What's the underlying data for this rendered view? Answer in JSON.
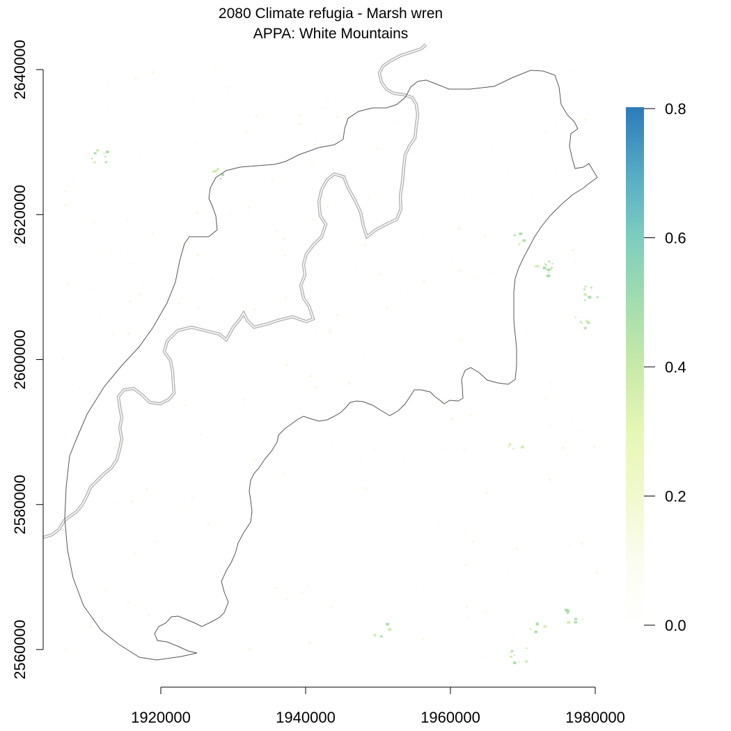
{
  "title": {
    "line1": "2080 Climate refugia - Marsh wren",
    "line2": "APPA: White Mountains"
  },
  "map_data": {
    "x_axis": {
      "ticks": [
        1920000,
        1940000,
        1960000,
        1980000
      ],
      "labels": [
        "1920000",
        "1940000",
        "1960000",
        "1980000"
      ]
    },
    "y_axis": {
      "ticks": [
        2560000,
        2580000,
        2600000,
        2620000,
        2640000
      ],
      "labels": [
        "2560000",
        "2580000",
        "2600000",
        "2620000",
        "2640000"
      ]
    },
    "legend": {
      "type": "continuous-colorbar",
      "min": 0.0,
      "max": 0.8,
      "ticks": [
        0.0,
        0.2,
        0.4,
        0.6,
        0.8
      ],
      "labels": [
        "0.0",
        "0.2",
        "0.4",
        "0.6",
        "0.8"
      ],
      "colors": [
        "#ffffff",
        "#fafdf0",
        "#f0f9c8",
        "#e4f6b0",
        "#cbeba8",
        "#a7dfac",
        "#7fcfbf",
        "#5bb2c4",
        "#3f93c2",
        "#2b7bba"
      ]
    },
    "layers": [
      {
        "name": "apap-boundary",
        "style": "solid",
        "color": "#555555"
      },
      {
        "name": "trail-corridor",
        "style": "dashed-double",
        "color": "#aaaaaa"
      }
    ],
    "raster_note_colors": {
      "low": "#f0f7d4",
      "mid": "#cbeaa6",
      "high": "#9fd9a0"
    }
  }
}
